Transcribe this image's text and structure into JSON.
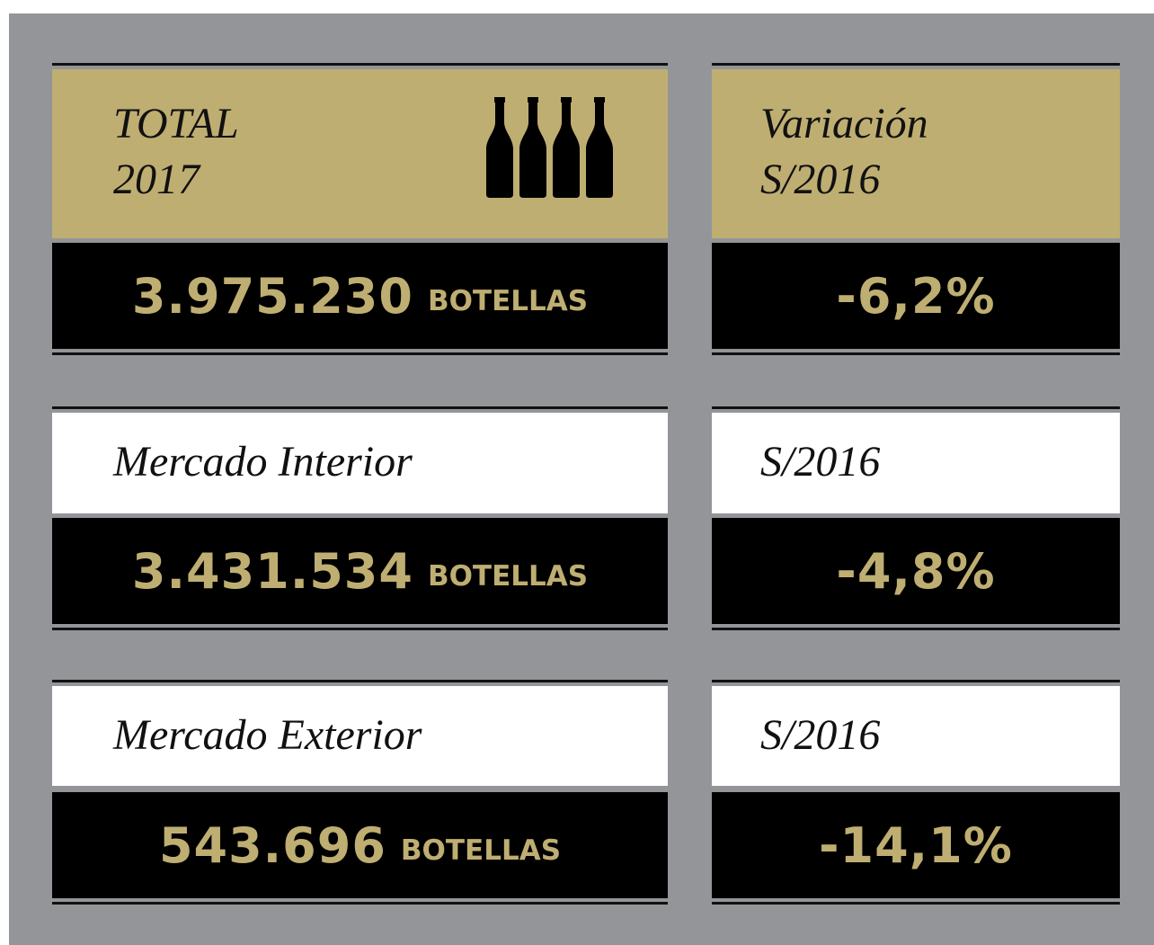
{
  "rows": [
    {
      "label": [
        "TOTAL",
        "2017"
      ],
      "value": "3.975.230",
      "unit": "BOTELLAS",
      "variation_label": [
        "Variación",
        "S/2016"
      ],
      "variation": "-6,2%"
    },
    {
      "label": [
        "Mercado Interior"
      ],
      "value": "3.431.534",
      "unit": "BOTELLAS",
      "variation_label": [
        "S/2016"
      ],
      "variation": "-4,8%"
    },
    {
      "label": [
        "Mercado Exterior"
      ],
      "value": "543.696",
      "unit": "BOTELLAS",
      "variation_label": [
        "S/2016"
      ],
      "variation": "-14,1%"
    }
  ]
}
